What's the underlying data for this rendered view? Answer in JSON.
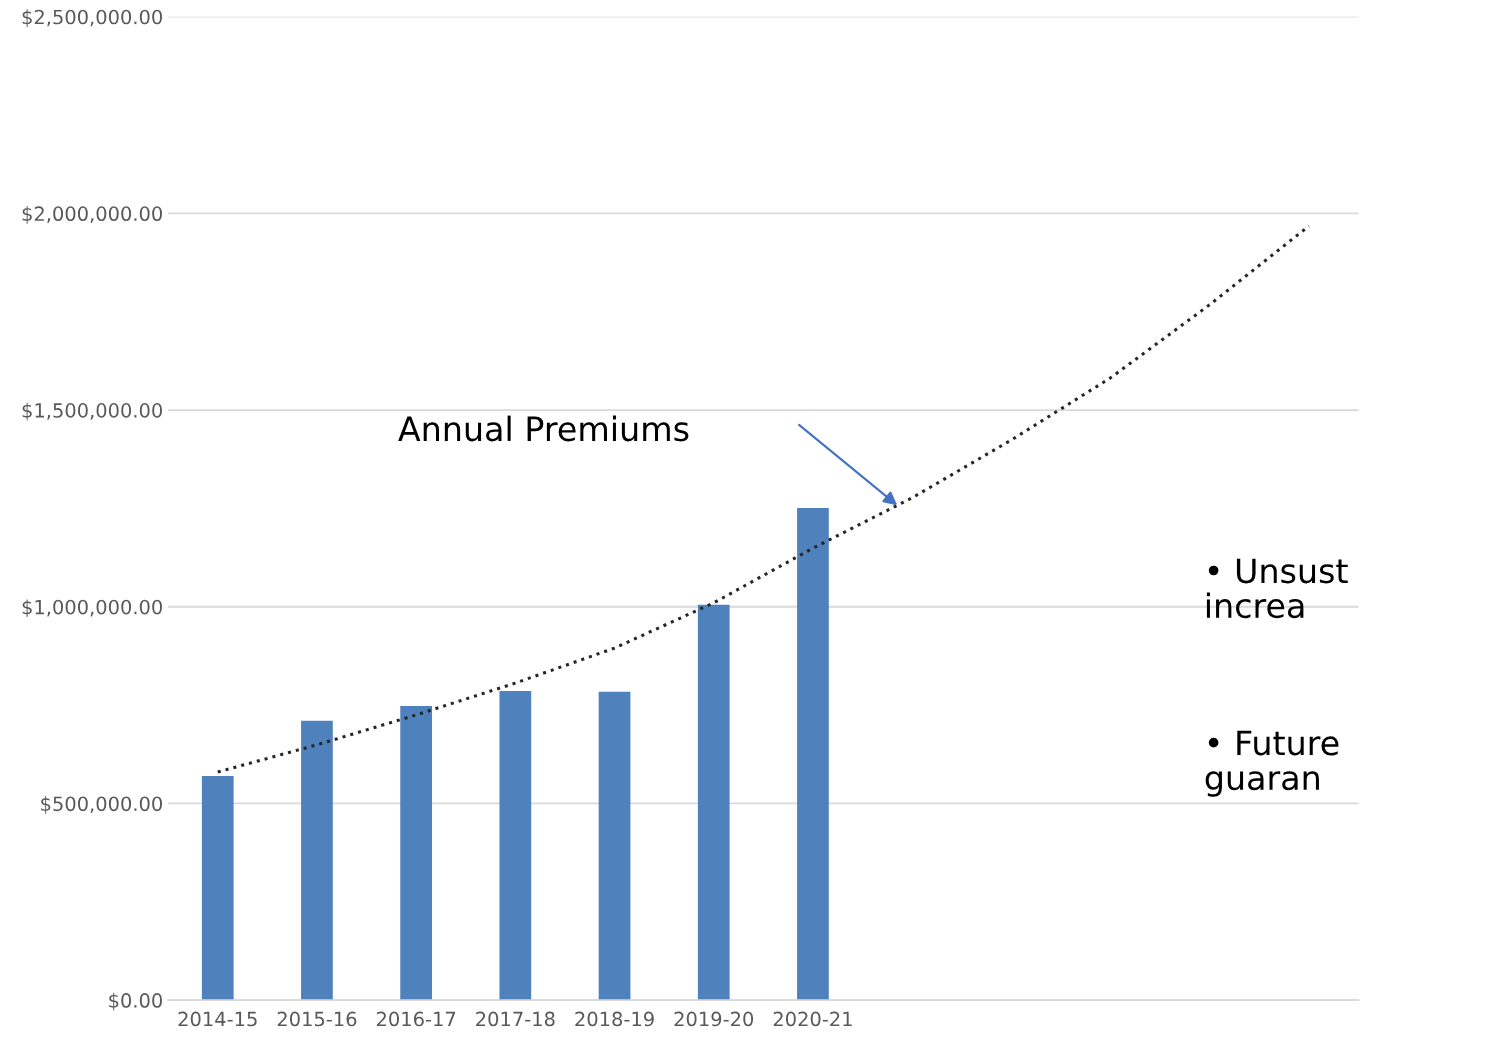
{
  "chart_data": {
    "type": "bar",
    "categories": [
      "2014-15",
      "2015-16",
      "2016-17",
      "2017-18",
      "2018-19",
      "2019-20",
      "2020-21",
      null,
      null,
      null,
      null,
      null
    ],
    "series": [
      {
        "color": "#4f81bd",
        "values": [
          570000,
          710000,
          748000,
          786000,
          784000,
          1005000,
          1251000,
          null,
          null,
          null,
          null,
          null
        ]
      },
      {
        "type": "line",
        "color": "#262626",
        "line_style": "dotted",
        "marker": "none",
        "values": [
          580000,
          649000,
          725000,
          806000,
          895000,
          1010000,
          1149000,
          1277000,
          1424000,
          1582000,
          1768000,
          1968000
        ]
      }
    ],
    "ylim": [
      0,
      2500000
    ],
    "yticks": [
      {
        "value": 0,
        "label": "$0.00"
      },
      {
        "value": 500000,
        "label": "$500,000.00"
      },
      {
        "value": 1000000,
        "label": "$1,000,000.00"
      },
      {
        "value": 1500000,
        "label": "$1,500,000.00"
      },
      {
        "value": 2000000,
        "label": "$2,000,000.00"
      },
      {
        "value": 2500000,
        "label": "$2,500,000.00"
      }
    ],
    "grid": "y",
    "legend": false,
    "annotations": [
      "Annual Premiums",
      "• Unsust\nincrea",
      "• Future\nguaran"
    ]
  }
}
